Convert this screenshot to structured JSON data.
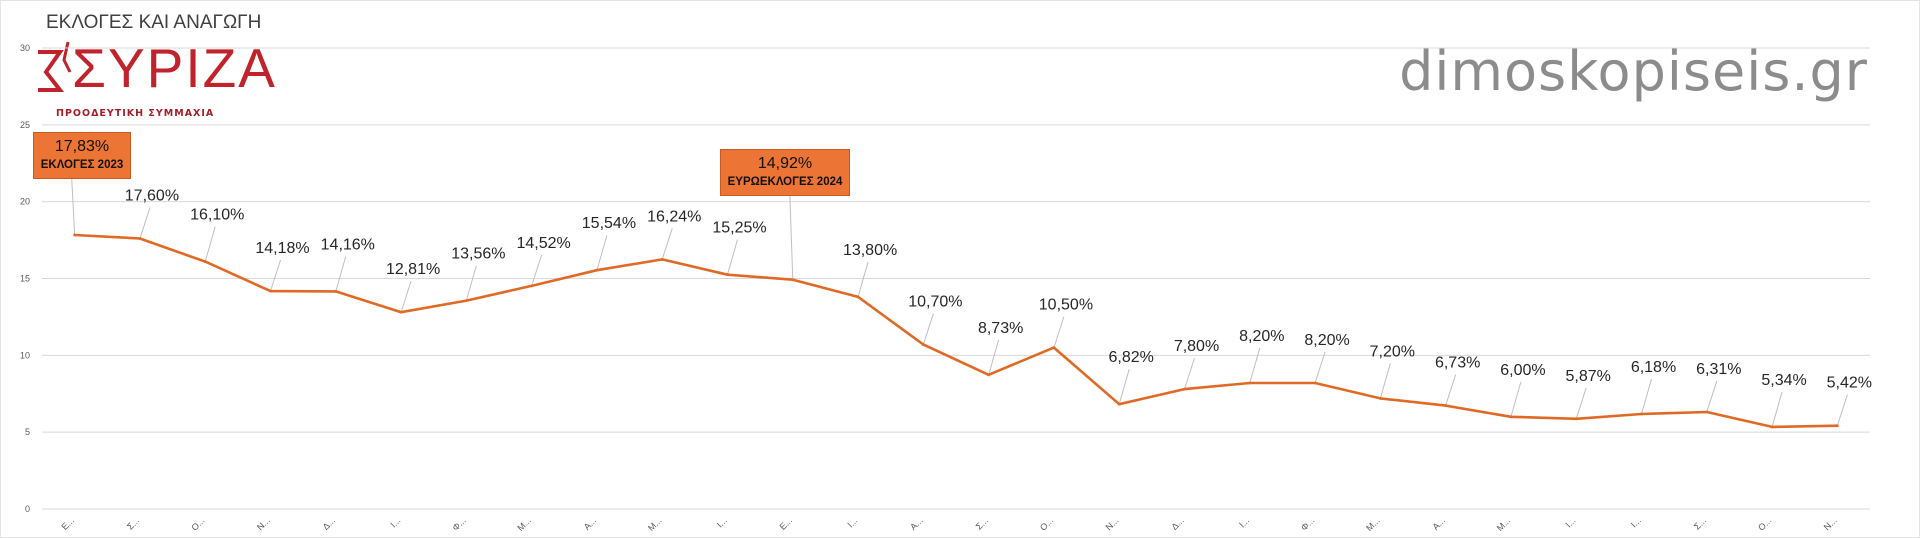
{
  "title": "ΕΚΛΟΓΕΣ ΚΑΙ ΑΝΑΓΩΓΗ",
  "logo": {
    "wordmark": "ΣΥΡΙΖΑ",
    "tagline": "ΠΡΟΟΔΕΥΤΙΚΗ ΣΥΜΜΑΧΙΑ",
    "color": "#c0232c"
  },
  "watermark": "dimoskopiseis.gr",
  "callouts": [
    {
      "value": "17,83%",
      "label": "ΕΚΛΟΓΕΣ 2023",
      "point_index": 0
    },
    {
      "value": "14,92%",
      "label": "ΕΥΡΩΕΚΛΟΓΕΣ 2024",
      "point_index": 11
    }
  ],
  "chart_data": {
    "type": "line",
    "title": "ΕΚΛΟΓΕΣ ΚΑΙ ΑΝΑΓΩΓΗ",
    "xlabel": "",
    "ylabel": "",
    "ylim": [
      0,
      30
    ],
    "yticks": [
      0,
      5,
      10,
      15,
      20,
      25,
      30
    ],
    "grid": true,
    "line_color": "#e06a25",
    "categories": [
      "Ε...",
      "Σ...",
      "Ο...",
      "Ν...",
      "Δ...",
      "Ι...",
      "Φ...",
      "Μ...",
      "Α...",
      "Μ...",
      "Ι...",
      "Ε...",
      "Ι...",
      "Α...",
      "Σ...",
      "Ο...",
      "Ν...",
      "Δ...",
      "Ι...",
      "Φ...",
      "Μ...",
      "Α...",
      "Μ...",
      "Ι...",
      "Ι...",
      "Σ...",
      "Ο...",
      "Ν..."
    ],
    "values": [
      17.83,
      17.6,
      16.1,
      14.18,
      14.16,
      12.81,
      13.56,
      14.52,
      15.54,
      16.24,
      15.25,
      14.92,
      13.8,
      10.7,
      8.73,
      10.5,
      6.82,
      7.8,
      8.2,
      8.2,
      7.2,
      6.73,
      6.0,
      5.87,
      6.18,
      6.31,
      5.34,
      5.42
    ],
    "labels": [
      "17,83%",
      "17,60%",
      "16,10%",
      "14,18%",
      "14,16%",
      "12,81%",
      "13,56%",
      "14,52%",
      "15,54%",
      "16,24%",
      "15,25%",
      "14,92%",
      "13,80%",
      "10,70%",
      "8,73%",
      "10,50%",
      "6,82%",
      "7,80%",
      "8,20%",
      "8,20%",
      "7,20%",
      "6,73%",
      "6,00%",
      "5,87%",
      "6,18%",
      "6,31%",
      "5,34%",
      "5,42%"
    ]
  }
}
